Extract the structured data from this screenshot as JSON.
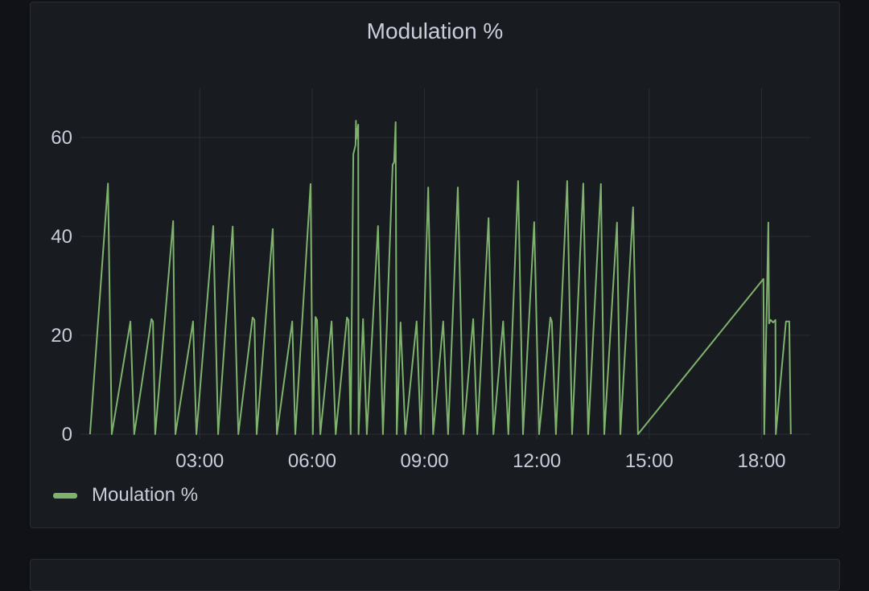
{
  "panel": {
    "title": "Modulation %"
  },
  "legend": {
    "items": [
      {
        "label": "Moulation %",
        "color": "#7eb26d"
      }
    ]
  },
  "colors": {
    "background": "#111217",
    "panel": "#181b1f",
    "grid": "#2c2e33",
    "series": "#7eb26d"
  },
  "chart_data": {
    "type": "line",
    "title": "Modulation %",
    "xlabel": "",
    "ylabel": "",
    "x_unit": "hours since 00:00",
    "xlim": [
      0,
      19.3
    ],
    "ylim": [
      0,
      70
    ],
    "grid": true,
    "legend_position": "bottom-left",
    "y_ticks": [
      0,
      20,
      40,
      60
    ],
    "y_tick_labels": [
      "0",
      "20",
      "40",
      "60"
    ],
    "x_ticks": [
      3,
      6,
      9,
      12,
      15,
      18
    ],
    "x_tick_labels": [
      "03:00",
      "06:00",
      "09:00",
      "12:00",
      "15:00",
      "18:00"
    ],
    "series": [
      {
        "name": "Moulation %",
        "color": "#7eb26d",
        "points": [
          [
            0.07,
            0
          ],
          [
            0.55,
            50.7
          ],
          [
            0.65,
            0
          ],
          [
            1.15,
            22.8
          ],
          [
            1.25,
            0
          ],
          [
            1.71,
            23.3
          ],
          [
            1.75,
            22.8
          ],
          [
            1.81,
            0
          ],
          [
            2.29,
            43.1
          ],
          [
            2.35,
            0
          ],
          [
            2.82,
            22.8
          ],
          [
            2.91,
            0
          ],
          [
            3.36,
            42.1
          ],
          [
            3.49,
            0
          ],
          [
            3.88,
            42
          ],
          [
            4.03,
            0
          ],
          [
            4.41,
            23.6
          ],
          [
            4.46,
            23.1
          ],
          [
            4.52,
            0
          ],
          [
            4.95,
            41.5
          ],
          [
            5.06,
            0
          ],
          [
            5.47,
            22.8
          ],
          [
            5.55,
            0
          ],
          [
            5.96,
            50.6
          ],
          [
            6.02,
            0
          ],
          [
            6.09,
            23.7
          ],
          [
            6.13,
            23.1
          ],
          [
            6.22,
            0
          ],
          [
            6.52,
            22.8
          ],
          [
            6.63,
            0
          ],
          [
            6.93,
            23.6
          ],
          [
            6.97,
            23.1
          ],
          [
            7.03,
            0
          ],
          [
            7.1,
            56.6
          ],
          [
            7.16,
            58.5
          ],
          [
            7.17,
            63.4
          ],
          [
            7.18,
            59.7
          ],
          [
            7.23,
            62.6
          ],
          [
            7.24,
            0
          ],
          [
            7.36,
            23.3
          ],
          [
            7.46,
            0
          ],
          [
            7.76,
            42.1
          ],
          [
            7.89,
            0
          ],
          [
            8.15,
            54.5
          ],
          [
            8.19,
            55
          ],
          [
            8.23,
            63.1
          ],
          [
            8.26,
            0
          ],
          [
            8.36,
            22.6
          ],
          [
            8.49,
            0
          ],
          [
            8.79,
            22.8
          ],
          [
            8.9,
            0
          ],
          [
            9.1,
            49.9
          ],
          [
            9.23,
            0
          ],
          [
            9.5,
            22.8
          ],
          [
            9.63,
            0
          ],
          [
            9.89,
            49.9
          ],
          [
            10.04,
            0
          ],
          [
            10.3,
            23.3
          ],
          [
            10.41,
            0
          ],
          [
            10.71,
            43.7
          ],
          [
            10.84,
            0
          ],
          [
            11.1,
            22.8
          ],
          [
            11.24,
            0
          ],
          [
            11.5,
            51.2
          ],
          [
            11.63,
            0
          ],
          [
            11.93,
            42.9
          ],
          [
            12.06,
            0
          ],
          [
            12.36,
            23.6
          ],
          [
            12.4,
            22.8
          ],
          [
            12.51,
            0
          ],
          [
            12.81,
            51.2
          ],
          [
            12.94,
            0
          ],
          [
            13.24,
            50.7
          ],
          [
            13.37,
            0
          ],
          [
            13.71,
            50.6
          ],
          [
            13.8,
            0
          ],
          [
            14.14,
            42.8
          ],
          [
            14.23,
            0
          ],
          [
            14.57,
            45.9
          ],
          [
            14.7,
            0
          ],
          [
            18.05,
            31.4
          ],
          [
            18.07,
            0
          ],
          [
            18.18,
            42.8
          ],
          [
            18.2,
            22.4
          ],
          [
            18.24,
            23.1
          ],
          [
            18.31,
            22.6
          ],
          [
            18.37,
            23.1
          ],
          [
            18.38,
            0
          ],
          [
            18.65,
            22.8
          ],
          [
            18.74,
            22.8
          ],
          [
            18.78,
            0
          ]
        ]
      }
    ]
  }
}
